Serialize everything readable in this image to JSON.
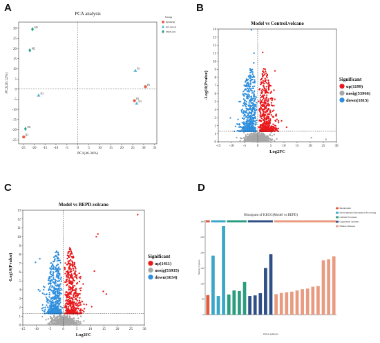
{
  "panels": {
    "a": {
      "letter": "A"
    },
    "b": {
      "letter": "B"
    },
    "c": {
      "letter": "C"
    },
    "d": {
      "letter": "D"
    }
  },
  "chart_data": [
    {
      "id": "A",
      "type": "scatter",
      "title": "PCA analysis",
      "xlabel": "PC1(46.36%)",
      "ylabel": "PC2(20.12%)",
      "xlim": [
        -27,
        36
      ],
      "ylim": [
        -27,
        33
      ],
      "xticks": [
        -25,
        -20,
        -15,
        -10,
        -5,
        0,
        5,
        10,
        15,
        20,
        25,
        30,
        35
      ],
      "yticks": [
        -25,
        -20,
        -15,
        -10,
        -5,
        0,
        5,
        10,
        15,
        20,
        25,
        30
      ],
      "grid": false,
      "reference_lines": {
        "x": 0,
        "y": 0,
        "style": "dashed"
      },
      "legend": {
        "title": "Group",
        "position": "top-right"
      },
      "series": [
        {
          "name": "B(BEPD)",
          "marker": "circle",
          "color": "#e8604c",
          "points": [
            {
              "label": "B1",
              "x": 30.8,
              "y": 1.2
            },
            {
              "label": "B2",
              "x": 25.8,
              "y": -5.7
            },
            {
              "label": "B3",
              "x": -24.7,
              "y": -23.6
            }
          ]
        },
        {
          "name": "K(Control)",
          "marker": "triangle",
          "color": "#56b4d3",
          "points": [
            {
              "label": "K1",
              "x": 26.2,
              "y": 9.1
            },
            {
              "label": "K2",
              "x": 26.8,
              "y": -7.1
            },
            {
              "label": "K3",
              "x": -17.9,
              "y": -3.1
            }
          ]
        },
        {
          "name": "M(Model)",
          "marker": "diamond",
          "color": "#2aa58a",
          "points": [
            {
              "label": "M1",
              "x": -23.9,
              "y": -19.6
            },
            {
              "label": "M2",
              "x": -21.9,
              "y": 19.1
            },
            {
              "label": "M3",
              "x": -20.7,
              "y": 29.5
            }
          ]
        }
      ]
    },
    {
      "id": "B",
      "type": "scatter",
      "title": "Model vs Control.volcano",
      "xlabel": "Log2FC",
      "ylabel": "-Log10(Pvalue)",
      "xlim": [
        -15,
        30
      ],
      "ylim": [
        0,
        14
      ],
      "xticks": [
        -15,
        -10,
        -5,
        0,
        5,
        10,
        15,
        20,
        25,
        30
      ],
      "yticks": [
        0,
        1,
        2,
        3,
        4,
        5,
        6,
        7,
        8,
        9,
        10,
        11,
        12,
        13,
        14
      ],
      "thresholds": {
        "x": 0,
        "y": 1.3
      },
      "legend": {
        "title": "Significant",
        "position": "right"
      },
      "series": [
        {
          "name": "up(1199)",
          "color": "#e8191c",
          "count": 1199
        },
        {
          "name": "nosig(53966)",
          "color": "#a6a6a6",
          "count": 53966
        },
        {
          "name": "down(1815)",
          "color": "#2f8fdd",
          "count": 1815
        }
      ],
      "extreme_points": [
        {
          "x": -2.4,
          "y": 13.9,
          "color": "#2f8fdd"
        },
        {
          "x": 1.9,
          "y": 11.1,
          "color": "#e8191c"
        },
        {
          "x": -1.4,
          "y": 11.0,
          "color": "#2f8fdd"
        },
        {
          "x": -1.5,
          "y": 9.8,
          "color": "#2f8fdd"
        },
        {
          "x": 6.6,
          "y": 8.8,
          "color": "#e8191c"
        },
        {
          "x": 6.2,
          "y": 6.4,
          "color": "#e8191c"
        },
        {
          "x": 9.1,
          "y": 2.6,
          "color": "#e8191c"
        },
        {
          "x": 11.0,
          "y": 1.8,
          "color": "#e8191c"
        },
        {
          "x": 20.4,
          "y": 0.5,
          "color": "#a6a6a6"
        },
        {
          "x": 26.0,
          "y": 0.3,
          "color": "#a6a6a6"
        }
      ]
    },
    {
      "id": "C",
      "type": "scatter",
      "title": "Model vs BEPD.volcano",
      "xlabel": "Log2FC",
      "ylabel": "-Log10(Pvalue)",
      "xlim": [
        -15,
        30
      ],
      "ylim": [
        0,
        13
      ],
      "xticks": [
        -15,
        -10,
        -5,
        0,
        5,
        10,
        15,
        20,
        25,
        30
      ],
      "yticks": [
        0,
        1,
        2,
        3,
        4,
        5,
        6,
        7,
        8,
        9,
        10,
        11,
        12,
        13
      ],
      "thresholds": {
        "x": 0,
        "y": 1.3
      },
      "legend": {
        "title": "Significant",
        "position": "right"
      },
      "series": [
        {
          "name": "up(1411)",
          "color": "#e8191c",
          "count": 1411
        },
        {
          "name": "nosig(53935)",
          "color": "#a6a6a6",
          "count": 53935
        },
        {
          "name": "down(1634)",
          "color": "#2f8fdd",
          "count": 1634
        }
      ],
      "extreme_points": [
        {
          "x": 27.5,
          "y": 12.5,
          "color": "#e8191c"
        },
        {
          "x": 12.8,
          "y": 10.3,
          "color": "#e8191c"
        },
        {
          "x": 12.2,
          "y": 10.0,
          "color": "#e8191c"
        },
        {
          "x": 11.5,
          "y": 6.1,
          "color": "#e8191c"
        },
        {
          "x": 14.8,
          "y": 3.8,
          "color": "#e8191c"
        },
        {
          "x": 15.9,
          "y": 3.5,
          "color": "#e8191c"
        },
        {
          "x": -8.7,
          "y": 7.5,
          "color": "#2f8fdd"
        },
        {
          "x": -10.3,
          "y": 7.1,
          "color": "#2f8fdd"
        },
        {
          "x": -9.2,
          "y": 4.0,
          "color": "#2f8fdd"
        }
      ]
    },
    {
      "id": "D",
      "type": "bar",
      "title": "Histogram of KEGG(Model vs BEPD)",
      "xlabel": "KEGG pathways",
      "ylabel": "Number of genes",
      "ylim": [
        0,
        305
      ],
      "yticks": [
        0,
        50,
        100,
        150,
        200,
        250,
        300
      ],
      "legend": {
        "position": "top-right"
      },
      "groups": [
        {
          "name": "Metabolism",
          "color": "#e05a3b",
          "start": 0,
          "end": 0
        },
        {
          "name": "Environmental Information Processing",
          "color": "#3aa7c9",
          "start": 1,
          "end": 3
        },
        {
          "name": "Cellular Processes",
          "color": "#2a9d7e",
          "start": 4,
          "end": 7
        },
        {
          "name": "Organismal Systems",
          "color": "#2f4f86",
          "start": 8,
          "end": 12
        },
        {
          "name": "Human Diseases",
          "color": "#e89b80",
          "start": 13,
          "end": 24
        }
      ],
      "values": [
        63,
        190,
        60,
        285,
        65,
        78,
        76,
        105,
        60,
        62,
        69,
        150,
        195,
        66,
        70,
        72,
        74,
        78,
        82,
        84,
        90,
        92,
        175,
        178,
        188
      ]
    }
  ]
}
